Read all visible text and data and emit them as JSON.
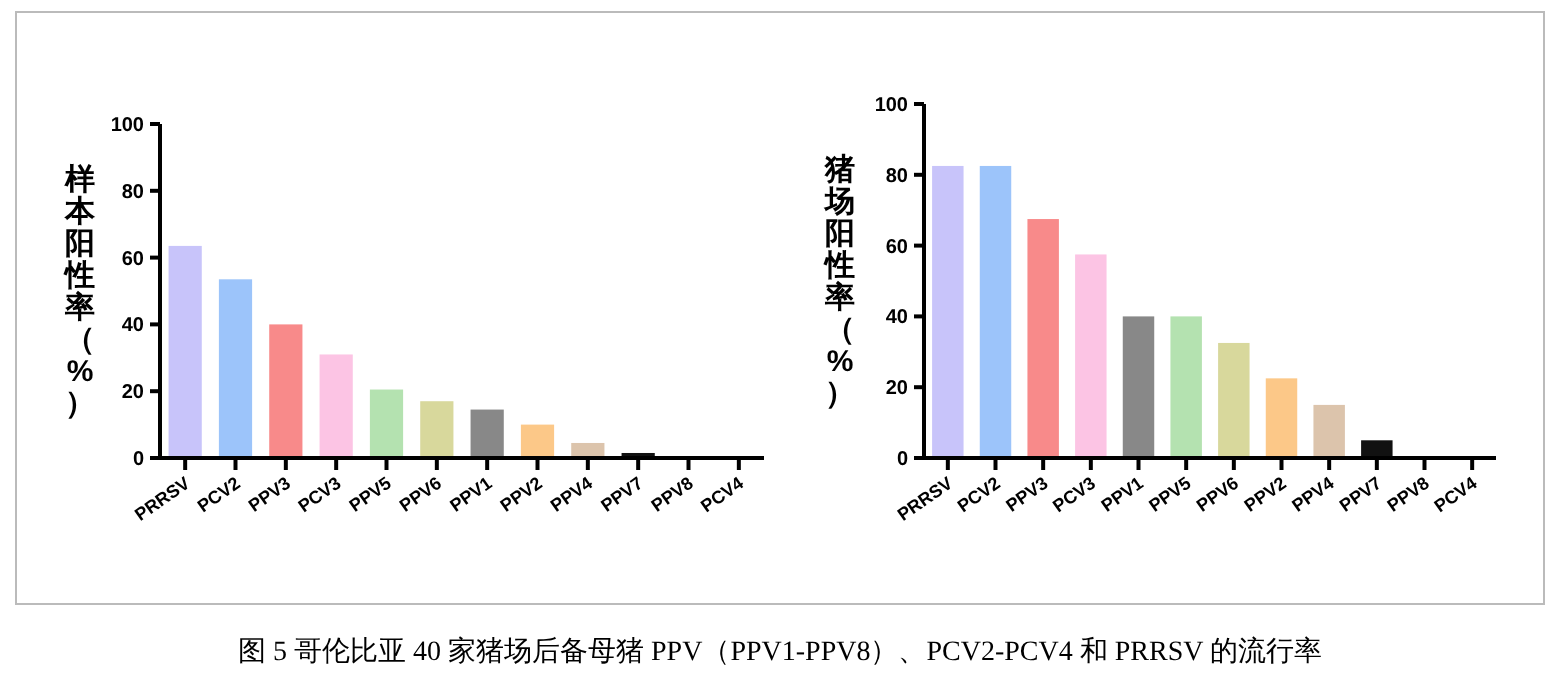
{
  "chart_data": [
    {
      "type": "bar",
      "ylabel": "样本阳性率（%）",
      "categories": [
        "PRRSV",
        "PCV2",
        "PPV3",
        "PCV3",
        "PPV5",
        "PPV6",
        "PPV1",
        "PPV2",
        "PPV4",
        "PPV7",
        "PPV8",
        "PCV4"
      ],
      "values": [
        63.5,
        53.5,
        40,
        31,
        20.5,
        17,
        14.5,
        10,
        4.5,
        1.5,
        0,
        0
      ],
      "colors": [
        "#c8c4fa",
        "#9cc4fa",
        "#f88a8a",
        "#fcc4e4",
        "#b4e2b0",
        "#d8d89c",
        "#888888",
        "#fcc888",
        "#dcc4ac",
        "#111111",
        "#111111",
        "#111111"
      ],
      "ylim": [
        0,
        100
      ],
      "yticks": [
        0,
        20,
        40,
        60,
        80,
        100
      ],
      "grid": false,
      "annotations": [
        "图 5 哥伦比亚 40 家猪场后备母猪 PPV（PPV1-PPV8）、PCV2-PCV4 和 PRRSV 的流行率"
      ]
    },
    {
      "type": "bar",
      "ylabel": "猪场阳性率（%）",
      "categories": [
        "PRRSV",
        "PCV2",
        "PPV3",
        "PCV3",
        "PPV1",
        "PPV5",
        "PPV6",
        "PPV2",
        "PPV4",
        "PPV7",
        "PPV8",
        "PCV4"
      ],
      "values": [
        82.5,
        82.5,
        67.5,
        57.5,
        40,
        40,
        32.5,
        22.5,
        15,
        5,
        0,
        0
      ],
      "colors": [
        "#c8c4fa",
        "#9cc4fa",
        "#f88a8a",
        "#fcc4e4",
        "#888888",
        "#b4e2b0",
        "#d8d89c",
        "#fcc888",
        "#dcc4ac",
        "#111111",
        "#111111",
        "#111111"
      ],
      "ylim": [
        0,
        100
      ],
      "yticks": [
        0,
        20,
        40,
        60,
        80,
        100
      ],
      "grid": false
    }
  ]
}
